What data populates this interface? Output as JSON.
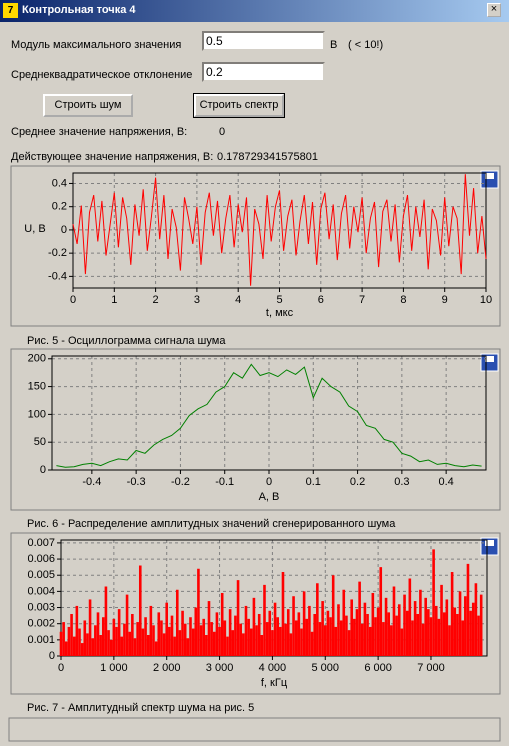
{
  "window": {
    "title": "Контрольная точка 4"
  },
  "form": {
    "fields": [
      {
        "label": "Модуль максимального значения",
        "value": "0.5",
        "unit": "В",
        "note": "( < 10!)"
      },
      {
        "label": "Среднеквадратическое отклонение",
        "value": "0.2"
      }
    ],
    "buttons": [
      "Строить шум",
      "Строить спектр"
    ],
    "stats": [
      {
        "label": "Среднее значение напряжения, В:",
        "value": "0"
      },
      {
        "label": "Действующее значение напряжения, В:",
        "value": "0.178729341575801"
      }
    ]
  },
  "chart_data": [
    {
      "type": "line",
      "caption": "Рис. 5 - Осциллограмма сигнала шума",
      "xlabel": "t, мкс",
      "ylabel": "U, В",
      "color": "#ff0000",
      "grid": true,
      "xlim": [
        0,
        10
      ],
      "ylim": [
        -0.5,
        0.49
      ],
      "xticks": [
        0,
        1,
        2,
        3,
        4,
        5,
        6,
        7,
        8,
        9,
        10
      ],
      "yticks": [
        -0.4,
        -0.2,
        0,
        0.2,
        0.4
      ],
      "x": [
        0,
        0.1,
        0.2,
        0.3,
        0.4,
        0.5,
        0.6,
        0.7,
        0.8,
        0.9,
        1,
        1.1,
        1.2,
        1.3,
        1.4,
        1.5,
        1.6,
        1.7,
        1.8,
        1.9,
        2,
        2.1,
        2.2,
        2.3,
        2.4,
        2.5,
        2.6,
        2.7,
        2.8,
        2.9,
        3,
        3.1,
        3.2,
        3.3,
        3.4,
        3.5,
        3.6,
        3.7,
        3.8,
        3.9,
        4,
        4.1,
        4.2,
        4.3,
        4.4,
        4.5,
        4.6,
        4.7,
        4.8,
        4.9,
        5,
        5.1,
        5.2,
        5.3,
        5.4,
        5.5,
        5.6,
        5.7,
        5.8,
        5.9,
        6,
        6.1,
        6.2,
        6.3,
        6.4,
        6.5,
        6.6,
        6.7,
        6.8,
        6.9,
        7,
        7.1,
        7.2,
        7.3,
        7.4,
        7.5,
        7.6,
        7.7,
        7.8,
        7.9,
        8,
        8.1,
        8.2,
        8.3,
        8.4,
        8.5,
        8.6,
        8.7,
        8.8,
        8.9,
        9,
        9.1,
        9.2,
        9.3,
        9.4,
        9.5,
        9.6,
        9.7,
        9.8,
        9.9,
        10
      ],
      "values": [
        0.05,
        -0.12,
        0.21,
        -0.38,
        0.15,
        0.3,
        -0.1,
        0.25,
        -0.22,
        0.05,
        0.32,
        -0.15,
        0.28,
        0.1,
        -0.3,
        0.22,
        -0.05,
        0.35,
        -0.18,
        0.12,
        0.45,
        -0.08,
        0.3,
        -0.25,
        0.18,
        0.02,
        -0.35,
        0.28,
        0.1,
        -0.12,
        0.2,
        -0.3,
        0.15,
        0.32,
        -0.05,
        0.25,
        -0.2,
        0.1,
        0.3,
        -0.15,
        0.22,
        -0.02,
        0.28,
        -0.48,
        0.18,
        0.05,
        -0.25,
        0.3,
        -0.1,
        0.2,
        0.34,
        -0.18,
        0.12,
        0.26,
        -0.22,
        0.08,
        0.3,
        -0.12,
        0.24,
        -0.3,
        0.18,
        0.32,
        -0.08,
        0.22,
        -0.26,
        0.14,
        0.3,
        -0.16,
        0.2,
        -0.02,
        0.28,
        -0.2,
        0.1,
        0.24,
        -0.32,
        0.16,
        0.26,
        -0.1,
        0.22,
        -0.28,
        0.12,
        0.3,
        -0.18,
        0.2,
        -0.06,
        0.26,
        -0.34,
        0.18,
        0.08,
        -0.22,
        0.28,
        -0.14,
        0.2,
        0.1,
        -0.38,
        0.48,
        -0.05,
        0.36,
        -0.2,
        0.12,
        -0.25
      ]
    },
    {
      "type": "line",
      "caption": "Рис. 6 - Распределение амплитудных значений сгенерированного шума",
      "xlabel": "A, В",
      "color": "#008000",
      "grid": true,
      "xlim": [
        -0.49,
        0.49
      ],
      "ylim": [
        0,
        205
      ],
      "xticks": [
        -0.4,
        -0.3,
        -0.2,
        -0.1,
        0,
        0.1,
        0.2,
        0.3,
        0.4
      ],
      "yticks": [
        0,
        50,
        100,
        150,
        200
      ],
      "x": [
        -0.48,
        -0.46,
        -0.44,
        -0.42,
        -0.4,
        -0.38,
        -0.36,
        -0.34,
        -0.32,
        -0.3,
        -0.28,
        -0.26,
        -0.24,
        -0.22,
        -0.2,
        -0.18,
        -0.16,
        -0.14,
        -0.12,
        -0.1,
        -0.08,
        -0.06,
        -0.04,
        -0.02,
        0,
        0.02,
        0.04,
        0.06,
        0.08,
        0.1,
        0.12,
        0.14,
        0.16,
        0.18,
        0.2,
        0.22,
        0.24,
        0.26,
        0.28,
        0.3,
        0.32,
        0.34,
        0.36,
        0.38,
        0.4,
        0.42,
        0.44,
        0.46,
        0.48
      ],
      "values": [
        8,
        5,
        6,
        10,
        12,
        8,
        15,
        20,
        18,
        35,
        30,
        45,
        55,
        62,
        75,
        98,
        110,
        118,
        140,
        150,
        175,
        165,
        190,
        170,
        175,
        168,
        180,
        172,
        185,
        130,
        165,
        150,
        140,
        115,
        105,
        80,
        75,
        55,
        50,
        30,
        25,
        15,
        18,
        10,
        12,
        8,
        6,
        9,
        7
      ]
    },
    {
      "type": "stem",
      "caption": "Рис. 7 - Амплитудный спектр шума на рис. 5",
      "xlabel": "f, кГц",
      "color": "#ff0000",
      "grid": true,
      "xlim": [
        0,
        8060
      ],
      "ylim": [
        0,
        0.00718
      ],
      "xticks": [
        0,
        {
          "value": 1000,
          "label": "1 000"
        },
        {
          "value": 2000,
          "label": "2 000"
        },
        {
          "value": 3000,
          "label": "3 000"
        },
        {
          "value": 4000,
          "label": "4 000"
        },
        {
          "value": 5000,
          "label": "5 000"
        },
        {
          "value": 6000,
          "label": "6 000"
        },
        {
          "value": 7000,
          "label": "7 000"
        }
      ],
      "yticks": [
        0,
        0.001,
        0.002,
        0.003,
        0.004,
        0.005,
        0.006,
        0.007
      ],
      "x": [
        0,
        50,
        100,
        150,
        200,
        250,
        300,
        350,
        400,
        450,
        500,
        550,
        600,
        650,
        700,
        750,
        800,
        850,
        900,
        950,
        1000,
        1050,
        1100,
        1150,
        1200,
        1250,
        1300,
        1350,
        1400,
        1450,
        1500,
        1550,
        1600,
        1650,
        1700,
        1750,
        1800,
        1850,
        1900,
        1950,
        2000,
        2050,
        2100,
        2150,
        2200,
        2250,
        2300,
        2350,
        2400,
        2450,
        2500,
        2550,
        2600,
        2650,
        2700,
        2750,
        2800,
        2850,
        2900,
        2950,
        3000,
        3050,
        3100,
        3150,
        3200,
        3250,
        3300,
        3350,
        3400,
        3450,
        3500,
        3550,
        3600,
        3650,
        3700,
        3750,
        3800,
        3850,
        3900,
        3950,
        4000,
        4050,
        4100,
        4150,
        4200,
        4250,
        4300,
        4350,
        4400,
        4450,
        4500,
        4550,
        4600,
        4650,
        4700,
        4750,
        4800,
        4850,
        4900,
        4950,
        5000,
        5050,
        5100,
        5150,
        5200,
        5250,
        5300,
        5350,
        5400,
        5450,
        5500,
        5550,
        5600,
        5650,
        5700,
        5750,
        5800,
        5850,
        5900,
        5950,
        6000,
        6050,
        6100,
        6150,
        6200,
        6250,
        6300,
        6350,
        6400,
        6450,
        6500,
        6550,
        6600,
        6650,
        6700,
        6750,
        6800,
        6850,
        6900,
        6950,
        7000,
        7050,
        7100,
        7150,
        7200,
        7250,
        7300,
        7350,
        7400,
        7450,
        7500,
        7550,
        7600,
        7650,
        7700,
        7750,
        7800,
        7850,
        7900,
        7950
      ],
      "values": [
        0.0015,
        0.0021,
        0.0009,
        0.0018,
        0.0026,
        0.0012,
        0.0031,
        0.0017,
        0.0008,
        0.0022,
        0.0014,
        0.0035,
        0.0011,
        0.0019,
        0.0027,
        0.0013,
        0.0024,
        0.0043,
        0.0016,
        0.001,
        0.0023,
        0.0018,
        0.0029,
        0.0012,
        0.002,
        0.0038,
        0.0015,
        0.0026,
        0.0011,
        0.0021,
        0.0056,
        0.0017,
        0.0024,
        0.0013,
        0.0031,
        0.0019,
        0.0009,
        0.0027,
        0.0022,
        0.0014,
        0.0033,
        0.0018,
        0.0025,
        0.0012,
        0.0041,
        0.0016,
        0.0028,
        0.002,
        0.0011,
        0.0024,
        0.0017,
        0.003,
        0.0054,
        0.0019,
        0.0023,
        0.0013,
        0.0034,
        0.0021,
        0.0015,
        0.0027,
        0.0018,
        0.0039,
        0.0022,
        0.0012,
        0.0029,
        0.0016,
        0.0025,
        0.0047,
        0.002,
        0.0014,
        0.0031,
        0.0023,
        0.0017,
        0.0036,
        0.0019,
        0.0026,
        0.0013,
        0.0044,
        0.0021,
        0.0028,
        0.0016,
        0.0033,
        0.0024,
        0.0018,
        0.0052,
        0.002,
        0.0029,
        0.0014,
        0.0037,
        0.0022,
        0.0027,
        0.0017,
        0.004,
        0.0023,
        0.0031,
        0.0015,
        0.0026,
        0.0045,
        0.0021,
        0.0034,
        0.0019,
        0.0028,
        0.0024,
        0.005,
        0.0018,
        0.0032,
        0.0022,
        0.0041,
        0.0025,
        0.0016,
        0.0035,
        0.0023,
        0.0029,
        0.0046,
        0.002,
        0.0033,
        0.0026,
        0.0018,
        0.0039,
        0.0024,
        0.003,
        0.0055,
        0.0021,
        0.0036,
        0.0027,
        0.0019,
        0.0043,
        0.0025,
        0.0032,
        0.0017,
        0.0038,
        0.0028,
        0.0048,
        0.0022,
        0.0034,
        0.0026,
        0.0041,
        0.002,
        0.0036,
        0.0029,
        0.0024,
        0.0066,
        0.0031,
        0.0023,
        0.0044,
        0.0027,
        0.0035,
        0.0019,
        0.0052,
        0.003,
        0.0026,
        0.004,
        0.0022,
        0.0037,
        0.0057,
        0.0028,
        0.0033,
        0.0045,
        0.0025,
        0.0038
      ]
    }
  ]
}
